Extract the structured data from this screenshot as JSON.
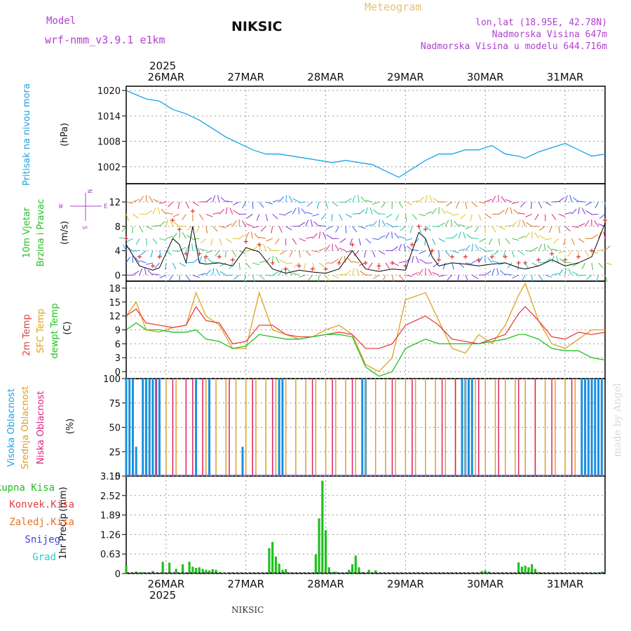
{
  "header": {
    "model_label": "Model",
    "model_name": "wrf-nmm_v3.9.1 e1km",
    "station_title": "NIKSIC",
    "product": "Meteogram",
    "coords": "lon,lat (18.95E, 42.78N)",
    "elevation": "Nadmorska Visina 647m",
    "model_elevation": "Nadmorska Visina u modelu 644.716m",
    "year_top": "2025",
    "year_bottom": "2025",
    "footer_station": "NIKSIC",
    "watermark": "made by Angel"
  },
  "colors": {
    "pressure": "#1aa3e6",
    "wind_speed": "#000000",
    "wind_gust": "#e03030",
    "temp_2m": "#e84040",
    "temp_sfc": "#e0a020",
    "dewpoint": "#20c020",
    "cloud_high": "#1a90e0",
    "cloud_mid": "#e0a020",
    "cloud_low": "#e02060",
    "precip_total": "#20c020",
    "precip_conv": "#e03030",
    "precip_frozen": "#f07020",
    "precip_snow": "#4040e0",
    "precip_graupel": "#20d0d0",
    "label_purple": "#b040d0",
    "label_blue": "#20a0e0",
    "label_green": "#20c020",
    "label_red": "#e04040",
    "label_orange": "#e0a020",
    "label_magenta": "#e02080"
  },
  "chart_data": [
    {
      "type": "line",
      "panel": "pressure",
      "ylabel_name": "Pritisak na nivou mora",
      "ylabel_unit": "(hPa)",
      "ylim": [
        998,
        1021
      ],
      "yticks": [
        "1020",
        "1014",
        "1008",
        "1002"
      ],
      "ytick_values": [
        1020,
        1014,
        1008,
        1002
      ],
      "x_hours": [
        0,
        3,
        6,
        10,
        14,
        18,
        22,
        26,
        30,
        34,
        38,
        42,
        46,
        50,
        54,
        58,
        62,
        66,
        70,
        74,
        78,
        82,
        86,
        90,
        94,
        98,
        102,
        106,
        110,
        114,
        118,
        120,
        124,
        128,
        132,
        136,
        140,
        144
      ],
      "values": [
        1020,
        1019,
        1018,
        1017.5,
        1015.5,
        1014.5,
        1013,
        1011,
        1009,
        1007.5,
        1006,
        1005,
        1005,
        1004.5,
        1004,
        1003.5,
        1003,
        1003.5,
        1003,
        1002.5,
        1001,
        999.5,
        1001.5,
        1003.5,
        1005,
        1005,
        1006,
        1006,
        1007,
        1005,
        1004.5,
        1004,
        1005.5,
        1006.5,
        1007.5,
        1006,
        1004.5,
        1005
      ]
    },
    {
      "type": "line",
      "panel": "wind",
      "ylabel_name": "10m Vjetar",
      "ylabel_name2": "Brzina i Pravac",
      "ylabel_unit": "(m/s)",
      "compass": {
        "n": "N",
        "s": "S",
        "w": "W",
        "e": "E"
      },
      "ylim": [
        -1,
        15
      ],
      "yticks": [
        "12",
        "8",
        "4",
        "0"
      ],
      "ytick_values": [
        12,
        8,
        4,
        0
      ],
      "series": [
        {
          "name": "speed",
          "x_hours": [
            0,
            4,
            8,
            10,
            14,
            16,
            18,
            20,
            22,
            24,
            28,
            32,
            36,
            40,
            44,
            48,
            52,
            56,
            60,
            64,
            68,
            72,
            76,
            80,
            84,
            86,
            88,
            90,
            92,
            94,
            98,
            102,
            106,
            110,
            114,
            118,
            120,
            124,
            128,
            132,
            136,
            140,
            144
          ],
          "values": [
            5,
            1.5,
            0.8,
            1.2,
            6,
            5,
            2,
            8,
            2,
            1.8,
            2,
            1.5,
            4.5,
            3.8,
            1,
            0.3,
            0.8,
            0.5,
            0.3,
            1,
            4,
            1,
            0.6,
            1,
            0.8,
            4,
            7,
            6,
            3,
            1.5,
            2,
            1.8,
            1.5,
            1.8,
            2,
            1.2,
            1,
            1.5,
            2.5,
            1.5,
            2,
            3,
            8.5
          ]
        },
        {
          "name": "gust",
          "x_hours": [
            0,
            4,
            8,
            10,
            14,
            16,
            18,
            20,
            22,
            24,
            28,
            32,
            36,
            40,
            44,
            48,
            52,
            56,
            60,
            64,
            68,
            72,
            76,
            80,
            84,
            86,
            88,
            90,
            92,
            94,
            98,
            102,
            106,
            110,
            114,
            118,
            120,
            124,
            128,
            132,
            136,
            140,
            144
          ],
          "values": [
            6,
            3,
            1.5,
            3,
            9,
            7.5,
            3.5,
            10.5,
            3.5,
            3,
            3,
            2.5,
            5.5,
            5,
            2,
            1,
            1.5,
            1,
            1,
            2,
            5,
            2,
            1.5,
            2,
            1.5,
            5,
            8,
            7.5,
            4,
            2.5,
            3,
            3,
            2.5,
            3,
            3,
            2,
            2,
            2.5,
            3.5,
            2.5,
            3,
            4,
            9
          ]
        }
      ]
    },
    {
      "type": "line",
      "panel": "temperature",
      "ylabel_name": "2m Temp",
      "ylabel_name2": "SFC Temp",
      "ylabel_name3": "dewpt Temp",
      "ylabel_unit": "(C)",
      "ylim": [
        -1.5,
        19.5
      ],
      "yticks": [
        "18",
        "15",
        "12",
        "9",
        "6",
        "3",
        "0"
      ],
      "ytick_values": [
        18,
        15,
        12,
        9,
        6,
        3,
        0
      ],
      "series": [
        {
          "name": "2m Temp",
          "x_hours": [
            0,
            3,
            6,
            10,
            14,
            18,
            21,
            24,
            28,
            32,
            36,
            40,
            44,
            48,
            52,
            56,
            60,
            64,
            68,
            72,
            76,
            80,
            84,
            90,
            94,
            98,
            102,
            106,
            110,
            114,
            118,
            120,
            124,
            128,
            132,
            136,
            140,
            144
          ],
          "values": [
            12,
            13.5,
            10.5,
            10,
            9.5,
            10,
            14,
            11,
            10.5,
            6,
            6.5,
            10,
            10,
            8,
            7.5,
            7.5,
            8,
            8.5,
            8,
            5,
            5,
            6,
            10,
            12,
            10,
            7,
            6.5,
            6,
            7,
            8,
            12.5,
            14,
            11,
            7.5,
            7,
            8.5,
            8,
            8.5
          ]
        },
        {
          "name": "SFC Temp",
          "x_hours": [
            0,
            3,
            6,
            10,
            14,
            18,
            21,
            24,
            28,
            32,
            36,
            40,
            44,
            48,
            52,
            56,
            60,
            64,
            68,
            72,
            76,
            80,
            84,
            90,
            94,
            98,
            102,
            106,
            110,
            114,
            118,
            120,
            124,
            128,
            132,
            136,
            140,
            144
          ],
          "values": [
            12,
            15,
            9,
            8.5,
            9.5,
            10,
            17,
            12,
            10,
            5,
            5,
            17,
            9,
            8,
            7,
            7.5,
            9,
            10,
            8,
            1.5,
            0,
            3,
            15.5,
            17,
            11,
            5,
            4,
            8,
            6,
            10,
            16.5,
            19,
            11,
            6,
            5,
            7,
            9,
            9
          ]
        },
        {
          "name": "dewpt Temp",
          "x_hours": [
            0,
            3,
            6,
            10,
            14,
            18,
            21,
            24,
            28,
            32,
            36,
            40,
            44,
            48,
            52,
            56,
            60,
            64,
            68,
            72,
            76,
            80,
            84,
            90,
            94,
            98,
            102,
            106,
            110,
            114,
            118,
            120,
            124,
            128,
            132,
            136,
            140,
            144
          ],
          "values": [
            9,
            10.5,
            9,
            9,
            8.5,
            8.5,
            9,
            7,
            6.5,
            5,
            5.5,
            8,
            7.5,
            7,
            7,
            7.5,
            8,
            8,
            7.5,
            1,
            -1,
            0,
            5,
            7,
            6,
            6,
            6,
            6,
            6.5,
            7,
            8,
            8,
            7,
            5,
            4.5,
            4.5,
            3,
            2.5
          ]
        }
      ]
    },
    {
      "type": "bar",
      "panel": "clouds",
      "ylabel_name": "Visoka Oblacnost",
      "ylabel_name2": "Srednja Oblacnost",
      "ylabel_name3": "Niska Oblacnost",
      "ylabel_unit": "(%)",
      "ylim": [
        0,
        100
      ],
      "yticks": [
        "100",
        "75",
        "50",
        "25",
        "0"
      ],
      "ytick_values": [
        100,
        75,
        50,
        25,
        0
      ],
      "series": [
        {
          "name": "Visoka Oblacnost",
          "x_hours": [
            0,
            1,
            2,
            3,
            5,
            6,
            7,
            8,
            9,
            10,
            21,
            25,
            35,
            46,
            47,
            71,
            72,
            101,
            102,
            103,
            104,
            137,
            138,
            139,
            140,
            141,
            142,
            143
          ],
          "values": [
            100,
            100,
            100,
            30,
            100,
            100,
            100,
            100,
            100,
            100,
            100,
            100,
            30,
            100,
            100,
            100,
            100,
            100,
            100,
            100,
            100,
            100,
            100,
            100,
            100,
            100,
            100,
            100
          ]
        },
        {
          "name": "Srednja Oblacnost",
          "x_hours": [
            12,
            15,
            24,
            27,
            30,
            33,
            36,
            39,
            42,
            45,
            48,
            51,
            54,
            57,
            60,
            63,
            66,
            69,
            72,
            75,
            78,
            81,
            84,
            87,
            90,
            93,
            96,
            99,
            102,
            105,
            108,
            111,
            114,
            117,
            120,
            123,
            126,
            129,
            132,
            135
          ],
          "values": [
            100,
            100,
            100,
            100,
            100,
            100,
            100,
            100,
            100,
            100,
            100,
            100,
            100,
            100,
            100,
            100,
            100,
            100,
            100,
            100,
            100,
            100,
            100,
            100,
            100,
            100,
            100,
            100,
            100,
            100,
            100,
            100,
            100,
            100,
            100,
            100,
            100,
            100,
            100,
            100
          ]
        },
        {
          "name": "Niska Oblacnost",
          "x_hours": [
            9,
            14,
            18,
            20,
            23,
            31,
            38,
            44,
            56,
            62,
            68,
            80,
            86,
            95,
            99,
            106,
            112,
            118,
            123,
            128,
            134
          ],
          "values": [
            100,
            100,
            100,
            100,
            100,
            100,
            100,
            100,
            100,
            100,
            100,
            100,
            100,
            100,
            100,
            100,
            100,
            100,
            100,
            100,
            100
          ]
        }
      ]
    },
    {
      "type": "bar",
      "panel": "precip",
      "ylabel_name": "1hr Precip",
      "ylabel_unit": "(mm)",
      "ylim": [
        0,
        3.15
      ],
      "yticks": [
        "3.15",
        "2.52",
        "1.89",
        "1.26",
        "0.63",
        "0"
      ],
      "ytick_values": [
        3.15,
        2.52,
        1.89,
        1.26,
        0.63,
        0
      ],
      "legend": [
        "Ukupna Kisa",
        "Konvek.Kisa",
        "Zaledj.Kisa",
        "Snijeg",
        "Grad"
      ],
      "x_hours": [
        0,
        3,
        5,
        8,
        11,
        13,
        15,
        17,
        19,
        20,
        21,
        22,
        23,
        24,
        25,
        26,
        27,
        28,
        29,
        30,
        43,
        44,
        45,
        46,
        47,
        48,
        49,
        57,
        58,
        59,
        60,
        61,
        62,
        63,
        67,
        68,
        69,
        70,
        71,
        73,
        75,
        107,
        108,
        109,
        118,
        119,
        120,
        121,
        122,
        123,
        124,
        143
      ],
      "values": [
        0.25,
        0.06,
        0.04,
        0.08,
        0.38,
        0.35,
        0.15,
        0.3,
        0.38,
        0.22,
        0.18,
        0.2,
        0.15,
        0.12,
        0.1,
        0.14,
        0.12,
        0.04,
        0.03,
        0.02,
        0.82,
        1.02,
        0.55,
        0.32,
        0.12,
        0.14,
        0.04,
        0.62,
        1.78,
        3.0,
        1.4,
        0.2,
        0.05,
        0.06,
        0.12,
        0.3,
        0.58,
        0.2,
        0.05,
        0.12,
        0.1,
        0.08,
        0.1,
        0.06,
        0.36,
        0.22,
        0.25,
        0.2,
        0.3,
        0.15,
        0.05,
        0.06
      ]
    }
  ],
  "x_axis": {
    "hours_total": 144,
    "date_ticks": [
      "26MAR",
      "27MAR",
      "28MAR",
      "29MAR",
      "30MAR",
      "31MAR"
    ],
    "date_tick_hours": [
      12,
      36,
      60,
      84,
      108,
      132
    ]
  }
}
